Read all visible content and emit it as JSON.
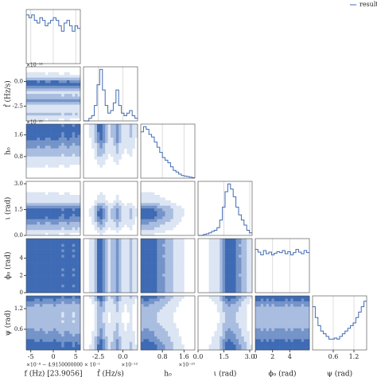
{
  "chart_data": {
    "type": "corner",
    "legend": "result",
    "color": "#3f6bb5",
    "level_colors": [
      "#dce5f3",
      "#a9bde0",
      "#7494c9",
      "#3f6bb5"
    ],
    "parameters": [
      {
        "label": "f (Hz) [23.9056]",
        "offset_text": "×10⁻⁸ − 4.9150000000 × 10⁻¹",
        "lim": [
          -6,
          6
        ],
        "ticks": [
          -5,
          0,
          5
        ],
        "hist_ylim": [
          0,
          1
        ],
        "hist": [
          0.9,
          0.85,
          0.9,
          0.8,
          0.75,
          0.85,
          0.8,
          0.7,
          0.75,
          0.8,
          0.85,
          0.8,
          0.7,
          0.6,
          0.75,
          0.8,
          0.7,
          0.6,
          0.7,
          0.65
        ]
      },
      {
        "label": "ḟ (Hz/s)",
        "offset_text": "×10⁻¹³",
        "lim": [
          -4,
          1.5
        ],
        "ticks": [
          -2.5,
          {
            "value": 0,
            "label": "0.0"
          }
        ],
        "hist_ylim": [
          0,
          1.05
        ],
        "hist": [
          0,
          0,
          0.05,
          0.1,
          0.3,
          0.7,
          1.0,
          0.6,
          0.3,
          0.15,
          0.2,
          0.35,
          0.6,
          0.3,
          0.15,
          0.1,
          0.15,
          0.2,
          0.1,
          0.05
        ]
      },
      {
        "label": "h₀",
        "offset_text": "×10⁻²⁵",
        "lim": [
          0,
          2
        ],
        "ticks": [
          0.8,
          1.6
        ],
        "hist_ylim": [
          0,
          1.05
        ],
        "hist": [
          0.9,
          1.0,
          0.95,
          0.85,
          0.8,
          0.7,
          0.6,
          0.5,
          0.4,
          0.35,
          0.3,
          0.22,
          0.15,
          0.12,
          0.08,
          0.05,
          0.04,
          0.03,
          0.02,
          0.01
        ]
      },
      {
        "label": "ι (rad)",
        "lim": [
          0,
          3.14
        ],
        "ticks": [
          {
            "value": 0,
            "label": "0.0"
          },
          1.5,
          {
            "value": 3,
            "label": "3.0"
          }
        ],
        "hist_ylim": [
          0,
          1.05
        ],
        "hist": [
          0,
          0,
          0.02,
          0.03,
          0.05,
          0.08,
          0.1,
          0.15,
          0.3,
          0.55,
          0.85,
          1.0,
          0.9,
          0.75,
          0.55,
          0.4,
          0.3,
          0.2,
          0.1,
          0.05
        ]
      },
      {
        "label": "ϕ₀ (rad)",
        "lim": [
          0,
          6.28
        ],
        "ticks": [
          0,
          2,
          4
        ],
        "hist_ylim": [
          0,
          1
        ],
        "hist": [
          0.8,
          0.75,
          0.7,
          0.78,
          0.72,
          0.75,
          0.7,
          0.73,
          0.76,
          0.74,
          0.78,
          0.72,
          0.76,
          0.7,
          0.74,
          0.8,
          0.75,
          0.72,
          0.78,
          0.74
        ]
      },
      {
        "label": "ψ (rad)",
        "lim": [
          0,
          1.57
        ],
        "ticks": [
          {
            "value": 0.6,
            "label": "0.6"
          },
          1.2
        ],
        "hist_ylim": [
          0,
          1
        ],
        "hist": [
          0.8,
          0.6,
          0.45,
          0.35,
          0.3,
          0.25,
          0.2,
          0.2,
          0.22,
          0.2,
          0.25,
          0.3,
          0.35,
          0.4,
          0.45,
          0.5,
          0.6,
          0.7,
          0.8,
          0.9
        ]
      }
    ]
  }
}
